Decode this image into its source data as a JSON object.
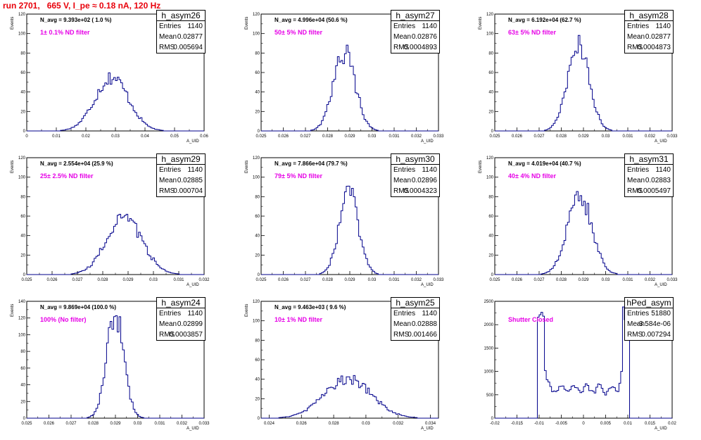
{
  "page": {
    "title": "run 2701,   665 V, I_pe ≈ 0.18 nA, 120 Hz"
  },
  "colors": {
    "title": "#e8000b",
    "hist_line": "#00008b",
    "annotation": "#e600e6"
  },
  "chart_data": [
    {
      "type": "histogram",
      "name": "h_asym26",
      "n_avg_text": "N_avg = 9.393e+02 ( 1.0 %)",
      "annotation": "1± 0.1% ND filter",
      "stats": {
        "entries_label": "Entries",
        "entries": "1140",
        "mean_label": "Mean",
        "mean": "0.02877",
        "rms_label": "RMS",
        "rms": "0.005694"
      },
      "xlabel": "A_UID",
      "ylabel": "Events",
      "xlim": [
        0,
        0.06
      ],
      "ylim": [
        0,
        120
      ],
      "xticks": [
        0,
        0.01,
        0.02,
        0.03,
        0.04,
        0.05,
        0.06
      ],
      "xtick_labels": [
        "0",
        "0.01",
        "0.02",
        "0.03",
        "0.04",
        "0.05",
        "0.06"
      ],
      "yticks": [
        0,
        20,
        40,
        60,
        80,
        100,
        120
      ],
      "mean": 0.02877,
      "rms": 0.005694,
      "peak": 55,
      "shape": "gauss"
    },
    {
      "type": "histogram",
      "name": "h_asym27",
      "n_avg_text": "N_avg = 4.996e+04 (50.6 %)",
      "annotation": "50± 5% ND filter",
      "stats": {
        "entries_label": "Entries",
        "entries": "1140",
        "mean_label": "Mean",
        "mean": "0.02876",
        "rms_label": "RMS",
        "rms": "0.0004893"
      },
      "xlabel": "A_UID",
      "ylabel": "Events",
      "xlim": [
        0.025,
        0.033
      ],
      "ylim": [
        0,
        120
      ],
      "xticks": [
        0.025,
        0.026,
        0.027,
        0.028,
        0.029,
        0.03,
        0.031,
        0.032,
        0.033
      ],
      "xtick_labels": [
        "0.025",
        "0.026",
        "0.027",
        "0.028",
        "0.029",
        "0.03",
        "0.031",
        "0.032",
        "0.033"
      ],
      "yticks": [
        0,
        20,
        40,
        60,
        80,
        100,
        120
      ],
      "mean": 0.02876,
      "rms": 0.0004893,
      "peak": 80,
      "shape": "gauss"
    },
    {
      "type": "histogram",
      "name": "h_asym28",
      "n_avg_text": "N_avg = 6.192e+04 (62.7 %)",
      "annotation": "63± 5% ND filter",
      "stats": {
        "entries_label": "Entries",
        "entries": "1140",
        "mean_label": "Mean",
        "mean": "0.02877",
        "rms_label": "RMS",
        "rms": "0.0004873"
      },
      "xlabel": "A_UID",
      "ylabel": "Events",
      "xlim": [
        0.025,
        0.033
      ],
      "ylim": [
        0,
        120
      ],
      "xticks": [
        0.025,
        0.026,
        0.027,
        0.028,
        0.029,
        0.03,
        0.031,
        0.032,
        0.033
      ],
      "xtick_labels": [
        "0.025",
        "0.026",
        "0.027",
        "0.028",
        "0.029",
        "0.03",
        "0.031",
        "0.032",
        "0.033"
      ],
      "yticks": [
        0,
        20,
        40,
        60,
        80,
        100,
        120
      ],
      "mean": 0.02877,
      "rms": 0.0004873,
      "peak": 88,
      "shape": "gauss"
    },
    {
      "type": "histogram",
      "name": "h_asym29",
      "n_avg_text": "N_avg = 2.554e+04 (25.9 %)",
      "annotation": "25± 2.5% ND filter",
      "stats": {
        "entries_label": "Entries",
        "entries": "1140",
        "mean_label": "Mean",
        "mean": "0.02885",
        "rms_label": "RMS",
        "rms": "0.000704"
      },
      "xlabel": "A_UID",
      "ylabel": "Events",
      "xlim": [
        0.025,
        0.032
      ],
      "ylim": [
        0,
        120
      ],
      "xticks": [
        0.025,
        0.026,
        0.027,
        0.028,
        0.029,
        0.03,
        0.031,
        0.032
      ],
      "xtick_labels": [
        "0.025",
        "0.026",
        "0.027",
        "0.028",
        "0.029",
        "0.03",
        "0.031",
        "0.032"
      ],
      "yticks": [
        0,
        20,
        40,
        60,
        80,
        100,
        120
      ],
      "mean": 0.02885,
      "rms": 0.000704,
      "peak": 58,
      "shape": "gauss"
    },
    {
      "type": "histogram",
      "name": "h_asym30",
      "n_avg_text": "N_avg = 7.866e+04 (79.7 %)",
      "annotation": "79± 5% ND filter",
      "stats": {
        "entries_label": "Entries",
        "entries": "1140",
        "mean_label": "Mean",
        "mean": "0.02896",
        "rms_label": "RMS",
        "rms": "0.0004323"
      },
      "xlabel": "A_UID",
      "ylabel": "Events",
      "xlim": [
        0.025,
        0.033
      ],
      "ylim": [
        0,
        120
      ],
      "xticks": [
        0.025,
        0.026,
        0.027,
        0.028,
        0.029,
        0.03,
        0.031,
        0.032,
        0.033
      ],
      "xtick_labels": [
        "0.025",
        "0.026",
        "0.027",
        "0.028",
        "0.029",
        "0.03",
        "0.031",
        "0.032",
        "0.033"
      ],
      "yticks": [
        0,
        20,
        40,
        60,
        80,
        100,
        120
      ],
      "mean": 0.02896,
      "rms": 0.0004323,
      "peak": 84,
      "shape": "gauss"
    },
    {
      "type": "histogram",
      "name": "h_asym31",
      "n_avg_text": "N_avg = 4.019e+04 (40.7 %)",
      "annotation": "40± 4% ND filter",
      "stats": {
        "entries_label": "Entries",
        "entries": "1140",
        "mean_label": "Mean",
        "mean": "0.02883",
        "rms_label": "RMS",
        "rms": "0.0005497"
      },
      "xlabel": "A_UID",
      "ylabel": "Events",
      "xlim": [
        0.025,
        0.033
      ],
      "ylim": [
        0,
        120
      ],
      "xticks": [
        0.025,
        0.026,
        0.027,
        0.028,
        0.029,
        0.03,
        0.031,
        0.032,
        0.033
      ],
      "xtick_labels": [
        "0.025",
        "0.026",
        "0.027",
        "0.028",
        "0.029",
        "0.03",
        "0.031",
        "0.032",
        "0.033"
      ],
      "yticks": [
        0,
        20,
        40,
        60,
        80,
        100,
        120
      ],
      "mean": 0.02883,
      "rms": 0.0005497,
      "peak": 82,
      "shape": "gauss"
    },
    {
      "type": "histogram",
      "name": "h_asym24",
      "n_avg_text": "N_avg = 9.869e+04 (100.0 %)",
      "annotation": "100% (No filter)",
      "stats": {
        "entries_label": "Entries",
        "entries": "1140",
        "mean_label": "Mean",
        "mean": "0.02899",
        "rms_label": "RMS",
        "rms": "0.0003857"
      },
      "xlabel": "A_UID",
      "ylabel": "Events",
      "xlim": [
        0.025,
        0.033
      ],
      "ylim": [
        0,
        140
      ],
      "xticks": [
        0.025,
        0.026,
        0.027,
        0.028,
        0.029,
        0.03,
        0.031,
        0.032,
        0.033
      ],
      "xtick_labels": [
        "0.025",
        "0.026",
        "0.027",
        "0.028",
        "0.029",
        "0.03",
        "0.031",
        "0.032",
        "0.033"
      ],
      "yticks": [
        0,
        20,
        40,
        60,
        80,
        100,
        120,
        140
      ],
      "mean": 0.02899,
      "rms": 0.0003857,
      "peak": 125,
      "shape": "gauss"
    },
    {
      "type": "histogram",
      "name": "h_asym25",
      "n_avg_text": "N_avg = 9.463e+03 ( 9.6 %)",
      "annotation": "10± 1% ND filter",
      "stats": {
        "entries_label": "Entries",
        "entries": "1140",
        "mean_label": "Mean",
        "mean": "0.02888",
        "rms_label": "RMS",
        "rms": "0.001466"
      },
      "xlabel": "A_UID",
      "ylabel": "Events",
      "xlim": [
        0.0235,
        0.0345
      ],
      "ylim": [
        0,
        120
      ],
      "xticks": [
        0.024,
        0.026,
        0.028,
        0.03,
        0.032,
        0.034
      ],
      "xtick_labels": [
        "0.024",
        "0.026",
        "0.028",
        "0.03",
        "0.032",
        "0.034"
      ],
      "yticks": [
        0,
        20,
        40,
        60,
        80,
        100,
        120
      ],
      "mean": 0.02888,
      "rms": 0.001466,
      "peak": 40,
      "shape": "gauss"
    },
    {
      "type": "histogram",
      "name": "hPed_asym",
      "n_avg_text": "",
      "annotation": "Shutter Closed",
      "stats": {
        "entries_label": "Entries",
        "entries": "51880",
        "mean_label": "Mean",
        "mean": "-3.584e-06",
        "rms_label": "RMS",
        "rms": "0.007294"
      },
      "xlabel": "A_UID",
      "ylabel": "",
      "xlim": [
        -0.02,
        0.02
      ],
      "ylim": [
        0,
        2500
      ],
      "xticks": [
        -0.02,
        -0.015,
        -0.01,
        -0.005,
        0,
        0.005,
        0.01,
        0.015,
        0.02
      ],
      "xtick_labels": [
        "-0.02",
        "-0.015",
        "-0.01",
        "-0.005",
        "0",
        "0.005",
        "0.01",
        "0.015",
        "0.02"
      ],
      "yticks": [
        0,
        500,
        1000,
        1500,
        2000,
        2500
      ],
      "mean": -3.584e-06,
      "rms": 0.007294,
      "peak": 2450,
      "shape": "pedestal"
    }
  ]
}
